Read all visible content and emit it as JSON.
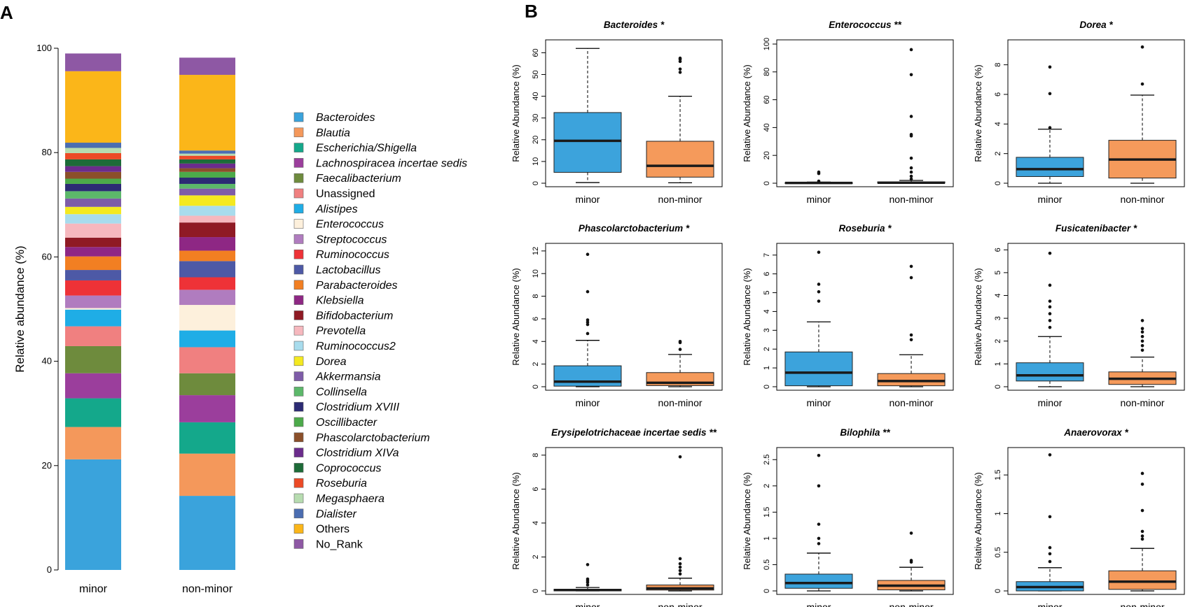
{
  "panels": {
    "a_label": "A",
    "b_label": "B"
  },
  "colors": {
    "minor": "#3ca3dc",
    "non_minor": "#f59a5b",
    "median": "#1a1a1a",
    "axis": "#000000"
  },
  "chart_data": [
    {
      "type": "bar",
      "stacked": true,
      "title": "",
      "xlabel": "",
      "ylabel": "Relative abundance (%)",
      "ylim": [
        0,
        100
      ],
      "yticks": [
        0,
        20,
        40,
        60,
        80,
        100
      ],
      "categories": [
        "minor",
        "non-minor"
      ],
      "legend_position": "right",
      "series": [
        {
          "name": "Bacteroides",
          "italic": true,
          "color": "#3aa3dc",
          "values": [
            21.2,
            14.2
          ]
        },
        {
          "name": "Blautia",
          "italic": true,
          "color": "#f4985b",
          "values": [
            6.2,
            8.1
          ]
        },
        {
          "name": "Escherichia/Shigella",
          "italic": true,
          "color": "#14a88b",
          "values": [
            5.5,
            6.0
          ]
        },
        {
          "name": "Lachnospiracea incertae sedis",
          "italic": true,
          "color": "#9b3e9c",
          "values": [
            4.8,
            5.2
          ]
        },
        {
          "name": "Faecalibacterium",
          "italic": true,
          "color": "#6e8b3d",
          "values": [
            5.2,
            4.2
          ]
        },
        {
          "name": "Unassigned",
          "italic": false,
          "color": "#f08080",
          "values": [
            3.8,
            5.0
          ]
        },
        {
          "name": "Alistipes",
          "italic": true,
          "color": "#1fade6",
          "values": [
            3.2,
            3.2
          ]
        },
        {
          "name": "Enterococcus",
          "italic": true,
          "color": "#fdf0dc",
          "values": [
            0.3,
            4.9
          ]
        },
        {
          "name": "Streptococcus",
          "italic": true,
          "color": "#b07cbf",
          "values": [
            2.4,
            2.9
          ]
        },
        {
          "name": "Ruminococcus",
          "italic": true,
          "color": "#ee3237",
          "values": [
            2.9,
            2.4
          ]
        },
        {
          "name": "Lactobacillus",
          "italic": true,
          "color": "#4d59a6",
          "values": [
            2.0,
            3.1
          ]
        },
        {
          "name": "Parabacteroides",
          "italic": true,
          "color": "#f27f22",
          "values": [
            2.6,
            2.0
          ]
        },
        {
          "name": "Klebsiella",
          "italic": true,
          "color": "#8e2784",
          "values": [
            1.8,
            2.6
          ]
        },
        {
          "name": "Bifidobacterium",
          "italic": true,
          "color": "#8f1a24",
          "values": [
            1.8,
            2.8
          ]
        },
        {
          "name": "Prevotella",
          "italic": true,
          "color": "#f6b8be",
          "values": [
            2.7,
            1.3
          ]
        },
        {
          "name": "Ruminococcus2",
          "italic": true,
          "color": "#a8dced",
          "values": [
            1.8,
            1.9
          ]
        },
        {
          "name": "Dorea",
          "italic": true,
          "color": "#f4e920",
          "values": [
            1.4,
            2.0
          ]
        },
        {
          "name": "Akkermansia",
          "italic": true,
          "color": "#7e5ca8",
          "values": [
            1.6,
            1.3
          ]
        },
        {
          "name": "Collinsella",
          "italic": true,
          "color": "#5cb86a",
          "values": [
            1.4,
            0.9
          ]
        },
        {
          "name": "Clostridium XVIII",
          "italic": true,
          "color": "#2c2b74",
          "values": [
            1.4,
            1.2
          ]
        },
        {
          "name": "Oscillibacter",
          "italic": true,
          "color": "#4caa4a",
          "values": [
            1.0,
            1.1
          ]
        },
        {
          "name": "Phascolarctobacterium",
          "italic": true,
          "color": "#8b4f2a",
          "values": [
            1.3,
            0.7
          ]
        },
        {
          "name": "Clostridium XIVa",
          "italic": true,
          "color": "#6b2c8c",
          "values": [
            1.1,
            0.9
          ]
        },
        {
          "name": "Coprococcus",
          "italic": true,
          "color": "#1d6b38",
          "values": [
            1.3,
            0.8
          ]
        },
        {
          "name": "Roseburia",
          "italic": true,
          "color": "#ec4a26",
          "values": [
            1.2,
            0.7
          ]
        },
        {
          "name": "Megasphaera",
          "italic": true,
          "color": "#b7dcb0",
          "values": [
            1.0,
            0.4
          ]
        },
        {
          "name": "Dialister",
          "italic": true,
          "color": "#4b6db1",
          "values": [
            1.0,
            0.6
          ]
        },
        {
          "name": "Others",
          "italic": false,
          "color": "#fbb619",
          "values": [
            13.7,
            14.5
          ]
        },
        {
          "name": "No_Rank",
          "italic": false,
          "color": "#8e58a4",
          "values": [
            3.4,
            3.3
          ]
        }
      ]
    },
    {
      "type": "box",
      "title": "Bacteroides",
      "stars": "*",
      "ylabel": "Relative Abundance (%)",
      "ylim": [
        0,
        64
      ],
      "yticks": [
        0,
        10,
        20,
        30,
        40,
        50,
        60
      ],
      "groups": [
        {
          "name": "minor",
          "q1": 5,
          "median": 19.5,
          "q3": 32.5,
          "whisker_low": 0.3,
          "whisker_high": 62,
          "outliers": []
        },
        {
          "name": "non-minor",
          "q1": 2.8,
          "median": 8,
          "q3": 19.3,
          "whisker_low": 0.2,
          "whisker_high": 40,
          "outliers": [
            51,
            52.5,
            56,
            57,
            57.5
          ]
        }
      ]
    },
    {
      "type": "box",
      "title": "Enterococcus",
      "stars": "**",
      "ylabel": "Relative Abundance (%)",
      "ylim": [
        0,
        100
      ],
      "yticks": [
        0,
        20,
        40,
        60,
        80,
        100
      ],
      "groups": [
        {
          "name": "minor",
          "q1": 0,
          "median": 0.2,
          "q3": 0.5,
          "whisker_low": 0,
          "whisker_high": 0.8,
          "outliers": [
            1.5,
            7,
            8
          ]
        },
        {
          "name": "non-minor",
          "q1": 0.1,
          "median": 0.4,
          "q3": 1,
          "whisker_low": 0,
          "whisker_high": 2,
          "outliers": [
            3,
            5,
            8,
            11,
            18,
            34,
            35,
            48,
            78,
            96
          ]
        }
      ]
    },
    {
      "type": "box",
      "title": "Dorea",
      "stars": "*",
      "ylabel": "Relative Abundance (%)",
      "ylim": [
        0,
        9.4
      ],
      "yticks": [
        0,
        2,
        4,
        6,
        8
      ],
      "groups": [
        {
          "name": "minor",
          "q1": 0.45,
          "median": 0.95,
          "q3": 1.75,
          "whisker_low": 0,
          "whisker_high": 3.65,
          "outliers": [
            3.75,
            6.05,
            7.85
          ]
        },
        {
          "name": "non-minor",
          "q1": 0.35,
          "median": 1.6,
          "q3": 2.9,
          "whisker_low": 0,
          "whisker_high": 5.95,
          "outliers": [
            6.7,
            9.2
          ]
        }
      ]
    },
    {
      "type": "box",
      "title": "Phascolarctobacterium",
      "stars": "*",
      "ylabel": "Relative Abundance (%)",
      "ylim": [
        0,
        12.3
      ],
      "yticks": [
        0,
        2,
        4,
        6,
        8,
        10,
        12
      ],
      "groups": [
        {
          "name": "minor",
          "q1": 0.05,
          "median": 0.45,
          "q3": 1.85,
          "whisker_low": 0,
          "whisker_high": 4.1,
          "outliers": [
            4.7,
            5.5,
            5.7,
            5.9,
            8.4,
            11.7
          ]
        },
        {
          "name": "non-minor",
          "q1": 0.1,
          "median": 0.35,
          "q3": 1.25,
          "whisker_low": 0,
          "whisker_high": 2.85,
          "outliers": [
            3.3,
            3.9,
            4.0
          ]
        }
      ]
    },
    {
      "type": "box",
      "title": "Roseburia",
      "stars": "*",
      "ylabel": "Relative Abundance (%)",
      "ylim": [
        0,
        7.4
      ],
      "yticks": [
        0,
        1,
        2,
        3,
        4,
        5,
        6,
        7
      ],
      "groups": [
        {
          "name": "minor",
          "q1": 0.05,
          "median": 0.75,
          "q3": 1.85,
          "whisker_low": 0,
          "whisker_high": 3.45,
          "outliers": [
            4.55,
            5.05,
            5.45,
            7.15
          ]
        },
        {
          "name": "non-minor",
          "q1": 0.05,
          "median": 0.3,
          "q3": 0.7,
          "whisker_low": 0,
          "whisker_high": 1.7,
          "outliers": [
            2.5,
            2.75,
            5.8,
            6.4
          ]
        }
      ]
    },
    {
      "type": "box",
      "title": "Fusicatenibacter",
      "stars": "*",
      "ylabel": "Relative Abundance (%)",
      "ylim": [
        0,
        6.1
      ],
      "yticks": [
        0,
        1,
        2,
        3,
        4,
        5,
        6
      ],
      "groups": [
        {
          "name": "minor",
          "q1": 0.25,
          "median": 0.5,
          "q3": 1.05,
          "whisker_low": 0,
          "whisker_high": 2.2,
          "outliers": [
            2.6,
            2.9,
            3.2,
            3.5,
            3.75,
            4.45,
            5.85
          ]
        },
        {
          "name": "non-minor",
          "q1": 0.1,
          "median": 0.35,
          "q3": 0.65,
          "whisker_low": 0,
          "whisker_high": 1.3,
          "outliers": [
            1.6,
            1.8,
            2.0,
            2.2,
            2.4,
            2.55,
            2.9
          ]
        }
      ]
    },
    {
      "type": "box",
      "title": "Erysipelotrichaceae incertae sedis",
      "stars": "**",
      "ylabel": "Relative Abundance (%)",
      "ylim": [
        0,
        8.2
      ],
      "yticks": [
        0,
        2,
        4,
        6,
        8
      ],
      "groups": [
        {
          "name": "minor",
          "q1": 0,
          "median": 0.05,
          "q3": 0.1,
          "whisker_low": 0,
          "whisker_high": 0.2,
          "outliers": [
            0.35,
            0.5,
            0.6,
            0.7,
            1.55
          ]
        },
        {
          "name": "non-minor",
          "q1": 0.05,
          "median": 0.15,
          "q3": 0.35,
          "whisker_low": 0,
          "whisker_high": 0.75,
          "outliers": [
            1.0,
            1.2,
            1.4,
            1.6,
            1.9,
            7.9
          ]
        }
      ]
    },
    {
      "type": "box",
      "title": "Bilophila",
      "stars": "**",
      "ylabel": "Relative Abundance (%)",
      "ylim": [
        0,
        2.65
      ],
      "yticks": [
        0,
        0.5,
        1.0,
        1.5,
        2.0,
        2.5
      ],
      "groups": [
        {
          "name": "minor",
          "q1": 0.05,
          "median": 0.15,
          "q3": 0.32,
          "whisker_low": 0,
          "whisker_high": 0.72,
          "outliers": [
            0.9,
            1.0,
            1.27,
            2.0,
            2.58
          ]
        },
        {
          "name": "non-minor",
          "q1": 0.02,
          "median": 0.1,
          "q3": 0.2,
          "whisker_low": 0,
          "whisker_high": 0.45,
          "outliers": [
            0.55,
            0.58,
            1.1
          ]
        }
      ]
    },
    {
      "type": "box",
      "title": "Anaerovorax",
      "stars": "*",
      "ylabel": "Relative Abundance (%)",
      "ylim": [
        0,
        1.8
      ],
      "yticks": [
        0,
        0.5,
        1.0,
        1.5
      ],
      "groups": [
        {
          "name": "minor",
          "q1": 0,
          "median": 0.05,
          "q3": 0.12,
          "whisker_low": 0,
          "whisker_high": 0.3,
          "outliers": [
            0.38,
            0.48,
            0.56,
            0.96,
            1.76
          ]
        },
        {
          "name": "non-minor",
          "q1": 0.02,
          "median": 0.12,
          "q3": 0.26,
          "whisker_low": 0,
          "whisker_high": 0.55,
          "outliers": [
            0.67,
            0.71,
            0.77,
            1.04,
            1.38,
            1.52
          ]
        }
      ]
    }
  ]
}
